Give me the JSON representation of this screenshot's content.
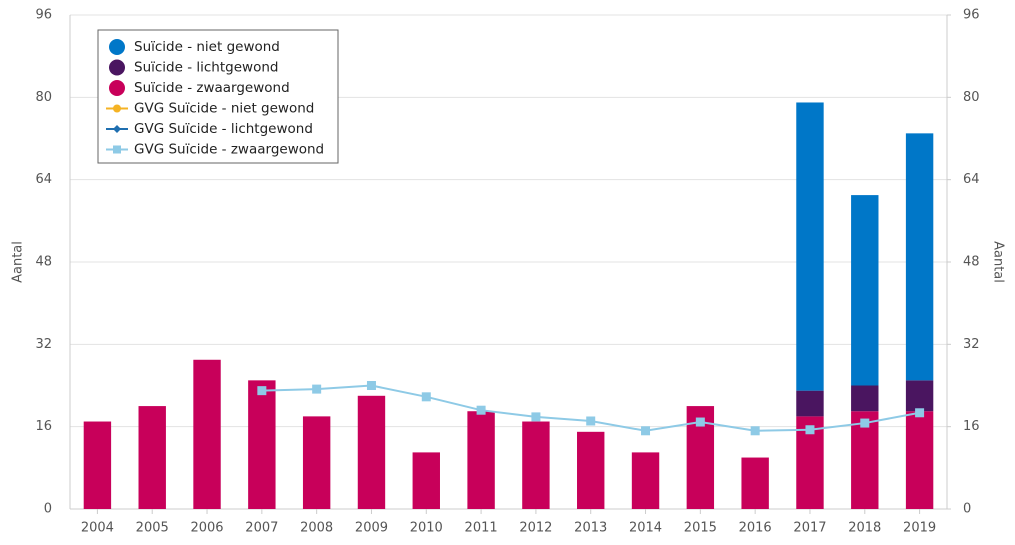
{
  "chart_data": {
    "type": "bar-line",
    "categories": [
      "2004",
      "2005",
      "2006",
      "2007",
      "2008",
      "2009",
      "2010",
      "2011",
      "2012",
      "2013",
      "2014",
      "2015",
      "2016",
      "2017",
      "2018",
      "2019"
    ],
    "y_label": "Aantal",
    "y2_label": "Aantal",
    "ylim": [
      0,
      96
    ],
    "yticks": [
      0,
      16,
      32,
      48,
      64,
      80,
      96
    ],
    "y2lim": [
      0,
      96
    ],
    "y2ticks": [
      0,
      16,
      32,
      48,
      64,
      80,
      96
    ],
    "grid": true,
    "legend": "top-left",
    "series": [
      {
        "name": "Suïcide - niet gewond",
        "type": "bar",
        "marker": "circle",
        "color": "#0077c8",
        "values": [
          0,
          0,
          0,
          0,
          0,
          0,
          0,
          0,
          0,
          0,
          0,
          0,
          0,
          56,
          37,
          48
        ]
      },
      {
        "name": "Suïcide - lichtgewond",
        "type": "bar",
        "marker": "circle",
        "color": "#4a1560",
        "values": [
          0,
          0,
          0,
          0,
          0,
          0,
          0,
          0,
          0,
          0,
          0,
          0,
          0,
          5,
          5,
          6
        ]
      },
      {
        "name": "Suïcide - zwaargewond",
        "type": "bar",
        "marker": "circle",
        "color": "#c8005a",
        "values": [
          17,
          20,
          29,
          25,
          18,
          22,
          11,
          19,
          17,
          15,
          11,
          20,
          10,
          18,
          19,
          19
        ]
      },
      {
        "name": "GVG Suïcide - niet gewond",
        "type": "line",
        "marker": "circle",
        "color": "#f5b324",
        "axis": "y2",
        "values": [
          null,
          null,
          null,
          null,
          null,
          null,
          null,
          null,
          null,
          null,
          null,
          null,
          null,
          null,
          null,
          null
        ]
      },
      {
        "name": "GVG Suïcide - lichtgewond",
        "type": "line",
        "marker": "diamond",
        "color": "#1f6fb0",
        "axis": "y2",
        "values": [
          null,
          null,
          null,
          null,
          null,
          null,
          null,
          null,
          null,
          null,
          null,
          null,
          null,
          null,
          null,
          null
        ]
      },
      {
        "name": "GVG Suïcide - zwaargewond",
        "type": "line",
        "marker": "square",
        "color": "#8ecae6",
        "axis": "y2",
        "values": [
          null,
          null,
          null,
          23,
          23.3,
          24,
          21.8,
          19.2,
          17.9,
          17.1,
          15.2,
          16.9,
          15.2,
          15.4,
          16.7,
          18.7
        ]
      }
    ]
  }
}
